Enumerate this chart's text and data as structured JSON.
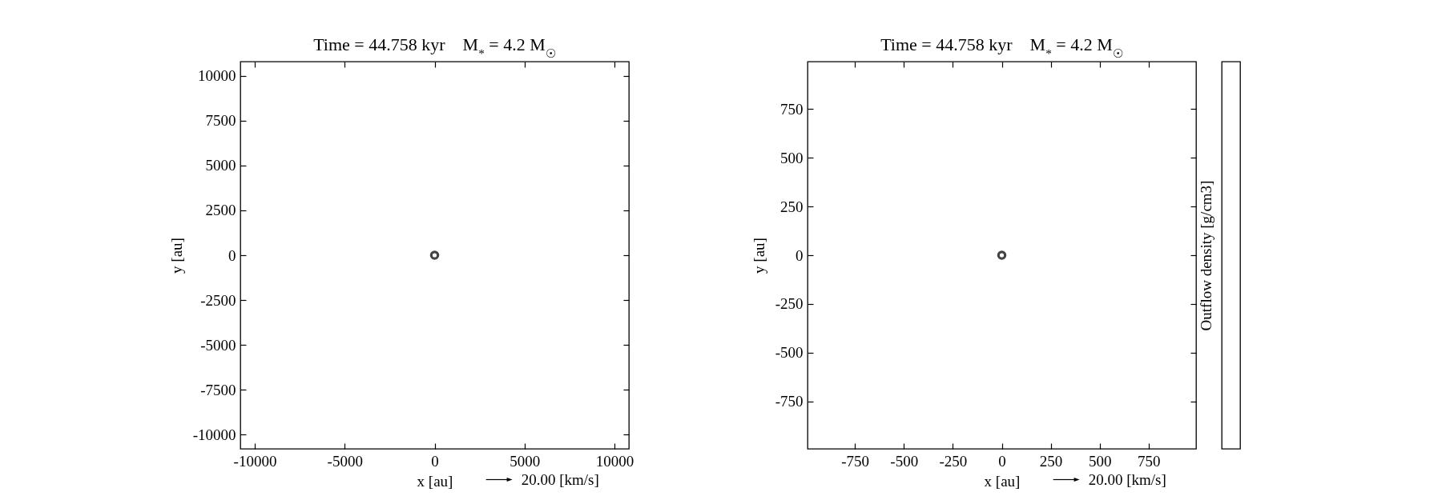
{
  "chart_data": [
    {
      "type": "scatter",
      "title": "Time = 44.758 kyr    M$_{*}$ = 4.2 M$_{☉}$",
      "xlabel": "x [au]",
      "ylabel": "y [au]",
      "x": [
        0
      ],
      "values": [
        0
      ],
      "color": "#444444",
      "marker": "circle",
      "xlim": [
        -10800,
        10800
      ],
      "ylim": [
        -10800,
        10800
      ],
      "xticks": [
        -10000,
        -5000,
        0,
        5000,
        10000
      ],
      "yticks": [
        -10000,
        -7500,
        -5000,
        -2500,
        0,
        2500,
        5000,
        7500,
        10000
      ],
      "annotations": [
        "20.00 [km/s]"
      ]
    },
    {
      "type": "scatter",
      "title": "Time = 44.758 kyr    M$_{*}$ = 4.2 M$_{☉}$",
      "xlabel": "x [au]",
      "ylabel": "y [au]",
      "clabel": "Outflow density [g/cm3]",
      "x": [
        0
      ],
      "values": [
        0
      ],
      "color": "#444444",
      "marker": "circle",
      "xlim": [
        -992,
        992
      ],
      "ylim": [
        -992,
        992
      ],
      "xticks": [
        -750,
        -500,
        -250,
        0,
        250,
        500,
        750
      ],
      "yticks": [
        -750,
        -500,
        -250,
        0,
        250,
        500,
        750
      ],
      "annotations": [
        "20.00 [km/s]"
      ]
    }
  ]
}
